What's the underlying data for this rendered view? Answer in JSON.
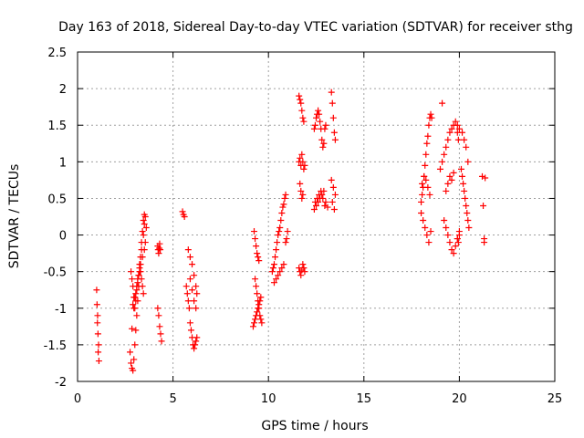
{
  "chart_data": {
    "type": "scatter",
    "title": "Day 163 of 2018, Sidereal Day-to-day VTEC variation (SDTVAR) for receiver sthg",
    "xlabel": "GPS time / hours",
    "ylabel": "SDTVAR / TECUs",
    "xlim": [
      0,
      25
    ],
    "ylim": [
      -2,
      2.5
    ],
    "grid": true,
    "marker": "+",
    "x_ticks": [
      0,
      5,
      10,
      15,
      20,
      25
    ],
    "x_tick_labels": [
      "0",
      "5",
      "10",
      "15",
      "20",
      "25"
    ],
    "y_ticks": [
      -2,
      -1.5,
      -1,
      -0.5,
      0,
      0.5,
      1,
      1.5,
      2,
      2.5
    ],
    "y_tick_labels": [
      "-2",
      "-1.5",
      "-1",
      "-0.5",
      "0",
      "0.5",
      "1",
      "1.5",
      "2",
      "2.5"
    ],
    "colors": {
      "marker": "#ff0000",
      "grid": "#a0a0a0",
      "axis": "#000000"
    },
    "series": [
      {
        "name": "SDTVAR",
        "x": [
          1.0,
          1.02,
          1.05,
          1.07,
          1.1,
          1.12,
          1.08,
          1.04,
          2.75,
          2.8,
          2.85,
          2.9,
          2.95,
          3.0,
          3.05,
          3.1,
          3.15,
          3.2,
          3.25,
          3.3,
          3.35,
          3.4,
          3.45,
          3.5,
          3.55,
          3.6,
          2.85,
          2.95,
          3.05,
          3.15,
          3.25,
          3.35,
          3.45,
          3.5,
          2.9,
          3.0,
          3.1,
          3.2,
          3.3,
          3.4,
          3.5,
          3.55,
          2.8,
          2.85,
          2.9,
          2.95,
          3.0,
          3.05,
          3.1,
          3.15,
          3.2,
          3.25,
          3.3,
          3.35,
          3.4,
          3.45,
          4.2,
          4.22,
          4.25,
          4.28,
          4.3,
          4.33,
          4.2,
          4.25,
          4.3,
          4.35,
          4.4,
          5.5,
          5.55,
          5.6,
          5.7,
          5.75,
          5.8,
          5.85,
          5.9,
          5.95,
          6.0,
          6.05,
          6.1,
          6.15,
          6.2,
          6.25,
          5.8,
          5.9,
          6.0,
          6.1,
          6.2,
          6.25,
          5.9,
          6.0,
          6.1,
          6.2,
          9.2,
          9.25,
          9.3,
          9.35,
          9.4,
          9.45,
          9.5,
          9.55,
          9.6,
          9.25,
          9.3,
          9.35,
          9.4,
          9.45,
          9.5,
          9.3,
          9.35,
          9.4,
          9.45,
          9.5,
          9.55,
          9.6,
          9.65,
          10.2,
          10.25,
          10.3,
          10.35,
          10.4,
          10.45,
          10.5,
          10.55,
          10.6,
          10.65,
          10.7,
          10.75,
          10.8,
          10.85,
          10.9,
          10.3,
          10.4,
          10.5,
          10.6,
          10.7,
          10.8,
          10.9,
          10.95,
          11.0,
          11.6,
          11.65,
          11.7,
          11.75,
          11.8,
          11.85,
          11.6,
          11.65,
          11.7,
          11.75,
          11.8,
          11.85,
          11.9,
          11.65,
          11.7,
          11.75,
          11.8,
          11.6,
          11.65,
          11.7,
          11.75,
          11.8,
          11.85,
          11.9,
          12.4,
          12.45,
          12.5,
          12.55,
          12.6,
          12.65,
          12.7,
          12.75,
          12.8,
          12.85,
          12.9,
          12.95,
          13.0,
          12.45,
          12.55,
          12.65,
          12.75,
          12.85,
          12.95,
          12.4,
          12.5,
          12.6,
          12.7,
          12.8,
          12.9,
          13.0,
          13.1,
          13.3,
          13.35,
          13.4,
          13.45,
          13.5,
          13.3,
          13.4,
          13.5,
          13.35,
          13.45,
          18.0,
          18.05,
          18.1,
          18.15,
          18.2,
          18.25,
          18.3,
          18.35,
          18.4,
          18.45,
          18.5,
          18.55,
          18.0,
          18.1,
          18.2,
          18.3,
          18.4,
          18.5,
          18.05,
          18.15,
          18.25,
          18.35,
          18.45,
          19.0,
          19.1,
          19.2,
          19.3,
          19.4,
          19.5,
          19.6,
          19.7,
          19.8,
          19.9,
          20.0,
          19.2,
          19.3,
          19.4,
          19.5,
          19.6,
          19.7,
          19.8,
          19.9,
          20.0,
          19.3,
          19.4,
          19.5,
          19.6,
          19.7,
          19.9,
          19.95,
          20.0,
          19.9,
          19.95,
          20.1,
          20.15,
          20.2,
          20.25,
          20.3,
          20.35,
          20.4,
          20.45,
          20.5,
          20.15,
          20.25,
          20.35,
          20.45,
          19.1,
          21.2,
          21.25,
          21.3,
          21.3,
          21.35
        ],
        "y": [
          -0.75,
          -0.95,
          -1.1,
          -1.35,
          -1.5,
          -1.72,
          -1.6,
          -1.2,
          -1.6,
          -1.75,
          -1.82,
          -1.85,
          -1.7,
          -1.5,
          -1.3,
          -1.1,
          -0.9,
          -0.7,
          -0.5,
          -0.3,
          -0.1,
          0.05,
          0.2,
          0.28,
          0.25,
          0.1,
          -1.28,
          -1.0,
          -0.8,
          -0.6,
          -0.4,
          -0.2,
          0.0,
          0.15,
          -0.95,
          -0.85,
          -0.7,
          -0.55,
          -0.4,
          -0.3,
          -0.2,
          -0.1,
          -0.5,
          -0.6,
          -0.7,
          -0.85,
          -1.0,
          -0.9,
          -0.75,
          -0.65,
          -0.55,
          -0.45,
          -0.5,
          -0.6,
          -0.7,
          -0.8,
          -0.15,
          -0.2,
          -0.25,
          -0.18,
          -0.12,
          -0.2,
          -1.0,
          -1.1,
          -1.25,
          -1.35,
          -1.45,
          0.32,
          0.28,
          0.25,
          -0.7,
          -0.8,
          -0.9,
          -1.0,
          -1.2,
          -1.3,
          -1.4,
          -1.5,
          -1.55,
          -1.5,
          -1.45,
          -1.4,
          -0.2,
          -0.3,
          -0.4,
          -0.55,
          -0.7,
          -0.8,
          -0.6,
          -0.75,
          -0.9,
          -1.0,
          -1.25,
          -1.2,
          -1.15,
          -1.1,
          -1.05,
          -1.0,
          -0.95,
          -0.9,
          -0.85,
          0.05,
          -0.05,
          -0.15,
          -0.25,
          -0.3,
          -0.35,
          -0.6,
          -0.7,
          -0.8,
          -0.9,
          -1.0,
          -1.1,
          -1.15,
          -1.2,
          -0.5,
          -0.45,
          -0.4,
          -0.3,
          -0.2,
          -0.1,
          0.0,
          0.05,
          0.1,
          0.2,
          0.3,
          0.38,
          0.42,
          0.5,
          0.55,
          -0.65,
          -0.6,
          -0.55,
          -0.5,
          -0.45,
          -0.4,
          -0.1,
          -0.05,
          0.05,
          1.9,
          1.85,
          1.8,
          1.7,
          1.6,
          1.55,
          1.0,
          1.05,
          0.95,
          1.1,
          1.0,
          0.9,
          0.95,
          0.7,
          0.6,
          0.5,
          0.55,
          -0.45,
          -0.5,
          -0.55,
          -0.48,
          -0.4,
          -0.45,
          -0.5,
          1.45,
          1.5,
          1.6,
          1.65,
          1.7,
          1.65,
          1.55,
          1.45,
          1.3,
          1.2,
          1.25,
          1.45,
          1.5,
          0.45,
          0.5,
          0.55,
          0.6,
          0.5,
          0.4,
          0.35,
          0.4,
          0.45,
          0.5,
          0.55,
          0.6,
          0.45,
          0.38,
          1.95,
          1.8,
          1.6,
          1.4,
          1.3,
          0.75,
          0.65,
          0.55,
          0.45,
          0.35,
          0.45,
          0.55,
          0.65,
          0.8,
          0.95,
          1.1,
          1.25,
          1.35,
          1.5,
          1.6,
          1.65,
          1.6,
          0.3,
          0.2,
          0.1,
          0.0,
          -0.1,
          0.05,
          0.7,
          0.8,
          0.75,
          0.65,
          0.55,
          0.9,
          1.0,
          1.1,
          1.2,
          1.3,
          1.4,
          1.45,
          1.5,
          1.55,
          1.5,
          1.45,
          0.2,
          0.1,
          0.0,
          -0.1,
          -0.2,
          -0.25,
          -0.15,
          -0.05,
          0.05,
          0.6,
          0.7,
          0.8,
          0.75,
          0.85,
          -0.05,
          -0.1,
          0.0,
          1.4,
          1.3,
          0.9,
          0.8,
          0.7,
          0.6,
          0.5,
          0.4,
          0.3,
          0.2,
          0.1,
          1.4,
          1.3,
          1.2,
          1.0,
          1.8,
          0.8,
          0.4,
          -0.05,
          -0.1,
          0.78
        ]
      }
    ]
  }
}
